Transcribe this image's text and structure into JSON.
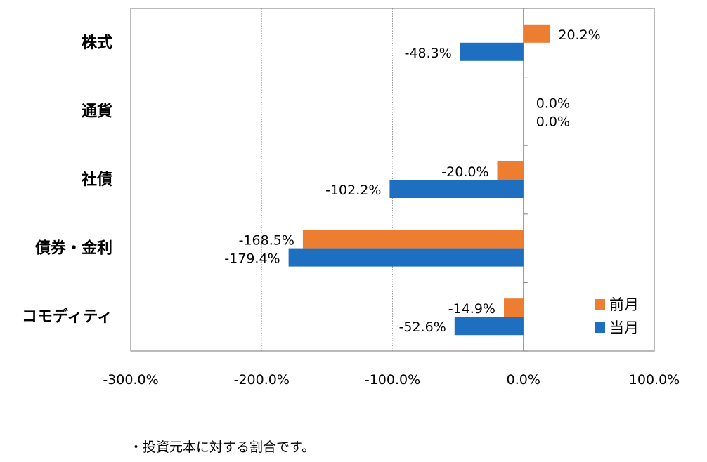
{
  "chart_data": {
    "type": "bar",
    "orientation": "horizontal",
    "categories": [
      "株式",
      "通貨",
      "社債",
      "債券・金利",
      "コモディティ"
    ],
    "series": [
      {
        "name": "前月",
        "color": "#ED7D31",
        "values": [
          20.2,
          0.0,
          -20.0,
          -168.5,
          -14.9
        ]
      },
      {
        "name": "当月",
        "color": "#1F6FC0",
        "values": [
          -48.3,
          0.0,
          -102.2,
          -179.4,
          -52.6
        ]
      }
    ],
    "value_labels": [
      [
        "20.2%",
        "0.0%",
        "-20.0%",
        "-168.5%",
        "-14.9%"
      ],
      [
        "-48.3%",
        "0.0%",
        "-102.2%",
        "-179.4%",
        "-52.6%"
      ]
    ],
    "xlim": [
      -300,
      100
    ],
    "x_ticks": [
      -300,
      -200,
      -100,
      0,
      100
    ],
    "x_tick_labels": [
      "-300.0%",
      "-200.0%",
      "-100.0%",
      "0.0%",
      "100.0%"
    ],
    "grid": "vertical dotted",
    "legend": "bottom-right"
  },
  "footnote": "・投資元本に対する割合です。"
}
